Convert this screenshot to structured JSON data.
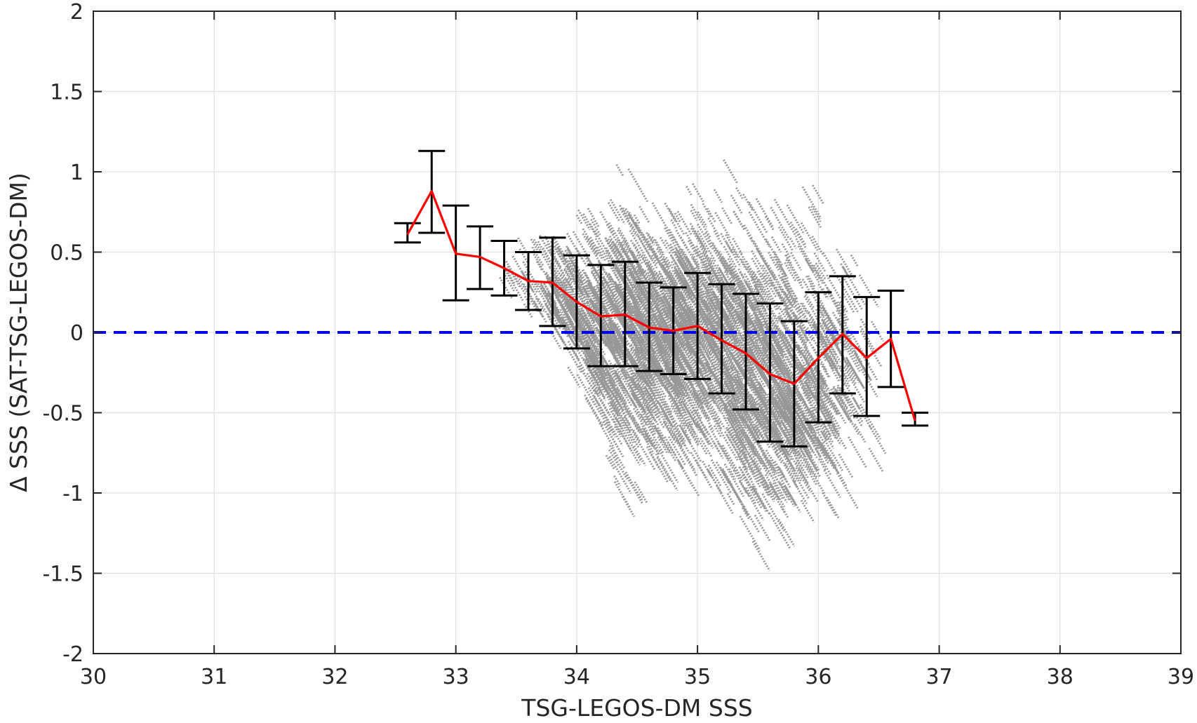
{
  "chart_data": {
    "type": "scatter",
    "title": "",
    "xlabel": "TSG-LEGOS-DM SSS",
    "ylabel": "Δ SSS (SAT-TSG-LEGOS-DM)",
    "xlim": [
      30,
      39
    ],
    "ylim": [
      -2,
      2
    ],
    "xticks": [
      30,
      31,
      32,
      33,
      34,
      35,
      36,
      37,
      38,
      39
    ],
    "xtick_labels": [
      "30",
      "31",
      "32",
      "33",
      "34",
      "35",
      "36",
      "37",
      "38",
      "39"
    ],
    "yticks": [
      2,
      1.5,
      1,
      0.5,
      0,
      -0.5,
      -1,
      -1.5,
      -2
    ],
    "ytick_labels": [
      "2",
      "1.5",
      "1",
      "0.5",
      "0",
      "-0.5",
      "-1",
      "-1.5",
      "-2"
    ],
    "grid": true,
    "zero_line": {
      "y": 0,
      "color": "#0000e6",
      "style": "dashed"
    },
    "scatter_color": "#8c8c8c",
    "mean_color": "#ff0000",
    "errorbar_color": "#000000",
    "scatter_cloud_note_free": true,
    "bins": {
      "x": [
        32.6,
        32.8,
        33.0,
        33.2,
        33.4,
        33.6,
        33.8,
        34.0,
        34.2,
        34.4,
        34.6,
        34.8,
        35.0,
        35.2,
        35.4,
        35.6,
        35.8,
        36.0,
        36.2,
        36.4,
        36.6,
        36.8
      ],
      "mean": [
        0.61,
        0.88,
        0.49,
        0.47,
        0.4,
        0.32,
        0.31,
        0.19,
        0.1,
        0.11,
        0.03,
        0.01,
        0.04,
        -0.05,
        -0.13,
        -0.26,
        -0.32,
        -0.16,
        -0.01,
        -0.16,
        -0.04,
        -0.55
      ],
      "upper": [
        0.68,
        1.13,
        0.79,
        0.66,
        0.57,
        0.5,
        0.59,
        0.48,
        0.42,
        0.44,
        0.31,
        0.28,
        0.37,
        0.3,
        0.24,
        0.18,
        0.07,
        0.25,
        0.35,
        0.22,
        0.26,
        -0.5
      ],
      "lower": [
        0.56,
        0.62,
        0.2,
        0.27,
        0.23,
        0.14,
        0.04,
        -0.1,
        -0.21,
        -0.21,
        -0.24,
        -0.26,
        -0.29,
        -0.38,
        -0.48,
        -0.68,
        -0.71,
        -0.56,
        -0.38,
        -0.52,
        -0.34,
        -0.58
      ]
    },
    "scatter_envelope": {
      "x": [
        32.6,
        32.8,
        33.0,
        33.2,
        33.4,
        33.6,
        33.8,
        34.0,
        34.2,
        34.4,
        34.6,
        34.8,
        35.0,
        35.2,
        35.4,
        35.6,
        35.8,
        36.0,
        36.2,
        36.4,
        36.6
      ],
      "top": [
        0.7,
        1.15,
        1.0,
        0.75,
        0.7,
        0.75,
        0.8,
        1.05,
        0.95,
        1.15,
        0.95,
        0.95,
        1.1,
        1.15,
        1.05,
        1.1,
        1.05,
        1.1,
        0.8,
        0.7,
        0.6
      ],
      "bottom": [
        0.55,
        0.6,
        0.2,
        0.25,
        0.2,
        0.1,
        -0.1,
        -0.4,
        -0.95,
        -1.25,
        -1.0,
        -1.0,
        -1.1,
        -1.35,
        -1.45,
        -1.4,
        -1.2,
        -1.2,
        -1.2,
        -0.95,
        -0.5
      ]
    }
  }
}
